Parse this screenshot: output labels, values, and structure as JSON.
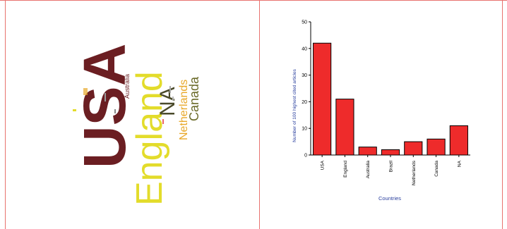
{
  "word_cloud": {
    "words": [
      {
        "text": "USA",
        "color": "#6b1e22"
      },
      {
        "text": "England",
        "color": "#e3dc2b"
      },
      {
        "text": "NA",
        "color": "#4a4a2a"
      },
      {
        "text": "Netherlands",
        "color": "#e8a82a"
      },
      {
        "text": "Canada",
        "color": "#6b6b2a"
      },
      {
        "text": "Australia",
        "color": "#6b1e22"
      }
    ]
  },
  "chart_data": {
    "type": "bar",
    "categories": [
      "USA",
      "England",
      "Australia",
      "Brazil",
      "Netherlands",
      "Canada",
      "NA"
    ],
    "values": [
      42,
      21,
      3,
      2,
      5,
      6,
      11
    ],
    "xlabel": "Countries",
    "ylabel": "Number of 100 highest cited articles",
    "ylim": [
      0,
      50
    ],
    "yticks": [
      0,
      10,
      20,
      30,
      40,
      50
    ],
    "bar_color": "#ee2b2b",
    "label_color": "#2a3f9e",
    "grid": false
  }
}
